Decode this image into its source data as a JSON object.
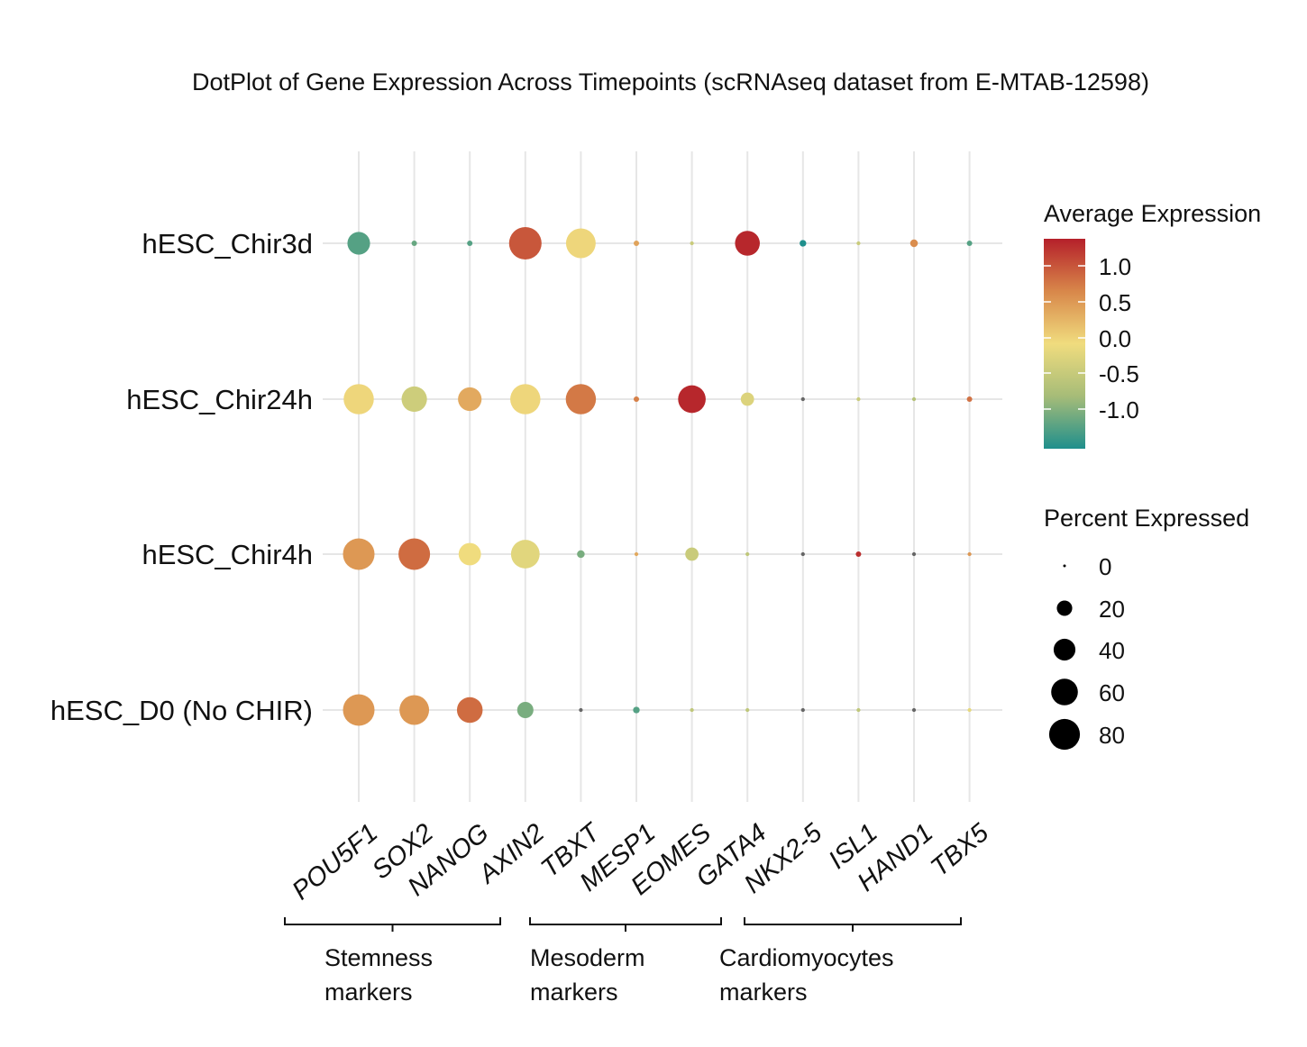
{
  "chart_data": {
    "type": "scatter",
    "subtype": "dotplot",
    "title": "DotPlot  of Gene Expression Across Timepoints (scRNAseq dataset from E-MTAB-12598)",
    "xlabel": "",
    "ylabel": "",
    "genes": [
      "POU5F1",
      "SOX2",
      "NANOG",
      "AXIN2",
      "TBXT",
      "MESP1",
      "EOMES",
      "GATA4",
      "NKX2-5",
      "ISL1",
      "HAND1",
      "TBX5"
    ],
    "samples": [
      "hESC_Chir3d",
      "hESC_Chir24h",
      "hESC_Chir4h",
      "hESC_D0 (No CHIR)"
    ],
    "grid": true,
    "series": [
      {
        "name": "hESC_Chir3d",
        "avg_expression": [
          -1.2,
          -1.1,
          -1.2,
          1.1,
          0.05,
          0.5,
          -0.4,
          1.45,
          -1.5,
          -0.4,
          0.7,
          -1.2
        ],
        "pct_expressed": [
          35,
          2,
          2,
          72,
          60,
          2,
          1,
          42,
          3,
          1,
          4,
          2
        ]
      },
      {
        "name": "hESC_Chir24h",
        "avg_expression": [
          0.05,
          -0.35,
          0.45,
          0.05,
          0.85,
          0.8,
          1.45,
          -0.2,
          -1.5,
          -0.4,
          -0.6,
          0.9
        ],
        "pct_expressed": [
          62,
          44,
          38,
          62,
          62,
          2,
          52,
          12,
          1,
          1,
          1,
          2
        ]
      },
      {
        "name": "hESC_Chir4h",
        "avg_expression": [
          0.6,
          0.95,
          0.0,
          -0.15,
          -1.0,
          0.45,
          -0.4,
          -0.5,
          -1.5,
          1.4,
          -1.5,
          0.6
        ],
        "pct_expressed": [
          68,
          68,
          34,
          56,
          4,
          1,
          12,
          1,
          1,
          2,
          1,
          1
        ]
      },
      {
        "name": "hESC_D0 (No CHIR)",
        "avg_expression": [
          0.6,
          0.6,
          0.95,
          -1.0,
          -1.5,
          -1.2,
          -0.5,
          -0.5,
          -1.5,
          -0.5,
          -1.5,
          -0.1
        ],
        "pct_expressed": [
          68,
          60,
          45,
          18,
          1,
          3,
          1,
          1,
          1,
          1,
          1,
          1
        ]
      }
    ],
    "color_legend": {
      "title": "Average Expression",
      "ticks": [
        "1.0",
        "0.5",
        "0.0",
        "-0.5",
        "-1.0"
      ],
      "range": [
        -1.5,
        1.5
      ],
      "colors": {
        "low": "#1f8f8c",
        "mid": "#f0dc7e",
        "high": "#b5202a",
        "midlow": "#a6bc78",
        "midhigh": "#d8874a"
      }
    },
    "size_legend": {
      "title": "Percent Expressed",
      "values": [
        0,
        20,
        40,
        60,
        80
      ],
      "labels": [
        "0",
        "20",
        "40",
        "60",
        "80"
      ]
    },
    "groups": [
      {
        "label_line1": "Stemness",
        "label_line2": "markers",
        "genes": [
          "POU5F1",
          "SOX2",
          "NANOG",
          "AXIN2"
        ]
      },
      {
        "label_line1": "Mesoderm",
        "label_line2": "markers",
        "genes": [
          "TBXT",
          "MESP1",
          "EOMES"
        ]
      },
      {
        "label_line1": "Cardiomyocytes",
        "label_line2": "markers",
        "genes": [
          "GATA4",
          "NKX2-5",
          "ISL1",
          "HAND1",
          "TBX5"
        ]
      }
    ]
  }
}
